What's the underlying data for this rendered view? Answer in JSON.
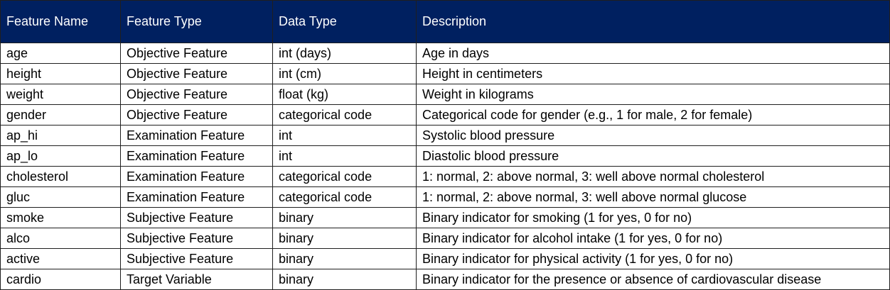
{
  "table": {
    "headers": [
      "Feature Name",
      "Feature Type",
      "Data Type",
      "Description"
    ],
    "rows": [
      [
        "age",
        "Objective Feature",
        "int (days)",
        "Age in days"
      ],
      [
        "height",
        "Objective Feature",
        "int (cm)",
        "Height in centimeters"
      ],
      [
        "weight",
        "Objective Feature",
        "float (kg)",
        "Weight in kilograms"
      ],
      [
        "gender",
        "Objective Feature",
        "categorical code",
        "Categorical code for gender (e.g., 1 for male, 2 for female)"
      ],
      [
        "ap_hi",
        "Examination Feature",
        "int",
        "Systolic blood pressure"
      ],
      [
        "ap_lo",
        "Examination Feature",
        "int",
        "Diastolic blood pressure"
      ],
      [
        "cholesterol",
        "Examination Feature",
        "categorical code",
        "1: normal, 2: above normal, 3: well above normal cholesterol"
      ],
      [
        "gluc",
        "Examination Feature",
        "categorical code",
        "1: normal, 2: above normal, 3: well above normal glucose"
      ],
      [
        "smoke",
        "Subjective Feature",
        "binary",
        "Binary indicator for smoking (1 for yes, 0 for no)"
      ],
      [
        "alco",
        "Subjective Feature",
        "binary",
        "Binary indicator for alcohol intake (1 for yes, 0 for no)"
      ],
      [
        "active",
        "Subjective Feature",
        "binary",
        "Binary indicator for physical activity (1 for yes, 0 for no)"
      ],
      [
        "cardio",
        "Target Variable",
        "binary",
        "Binary indicator for the presence or absence of cardiovascular disease"
      ]
    ]
  },
  "colors": {
    "header_background": "#002060",
    "header_text": "#ffffff",
    "border": "#1f1f1f"
  }
}
